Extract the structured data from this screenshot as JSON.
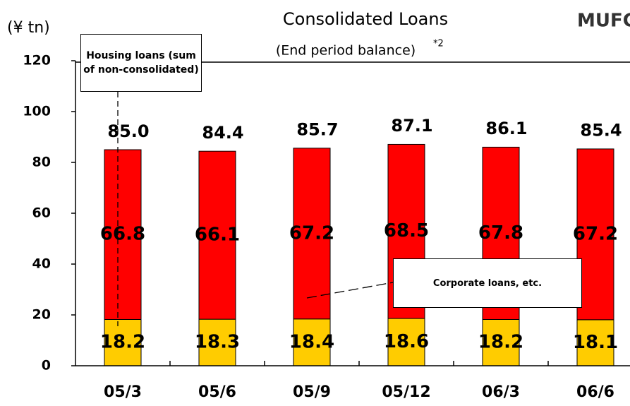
{
  "chart_data": {
    "type": "stacked_bar",
    "title": "Consolidated Loans",
    "subtitle": "(End period balance)",
    "footnote_mark": "*2",
    "logo": "MUFG",
    "y_label": "(¥ tn)",
    "categories": [
      "05/3",
      "05/6",
      "05/9",
      "05/12",
      "06/3",
      "06/6"
    ],
    "series": [
      {
        "name": "Housing loans (sum of non-consolidated)",
        "color": "#ffcc00",
        "values": [
          18.2,
          18.3,
          18.4,
          18.6,
          18.2,
          18.1
        ]
      },
      {
        "name": "Corporate loans, etc.",
        "color": "#ff0000",
        "values": [
          66.8,
          66.1,
          67.2,
          68.5,
          67.8,
          67.2
        ]
      }
    ],
    "totals": [
      85,
      84.4,
      85.7,
      87.1,
      86.1,
      85.4
    ],
    "total_labels": [
      "85.0",
      "84.4",
      "85.7",
      "87.1",
      "86.1",
      "85.4"
    ],
    "ylim": [
      0,
      120
    ],
    "yticks": [
      0,
      20,
      40,
      60,
      80,
      100,
      120
    ]
  }
}
